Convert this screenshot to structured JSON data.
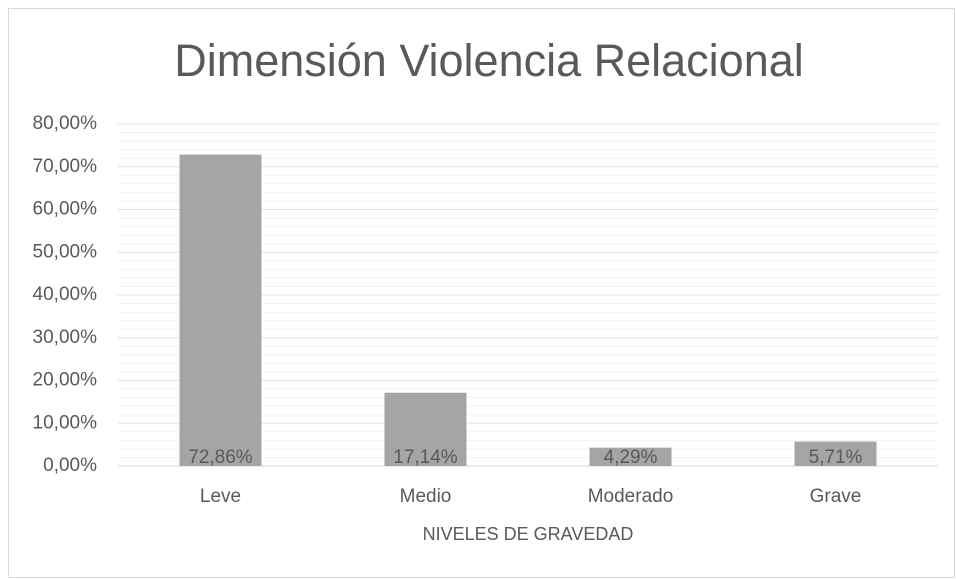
{
  "chart_data": {
    "type": "bar",
    "title": "Dimensión Violencia Relacional",
    "x_label": "NIVELES DE GRAVEDAD",
    "categories": [
      "Leve",
      "Medio",
      "Moderado",
      "Grave"
    ],
    "values": [
      72.86,
      17.14,
      4.29,
      5.71
    ],
    "value_labels": [
      "72,86%",
      "17,14%",
      "4,29%",
      "5,71%"
    ],
    "color": "#a5a5a5",
    "ylim": [
      0,
      80
    ],
    "yticks": [
      {
        "value": 0,
        "label": "0,00%"
      },
      {
        "value": 10,
        "label": "10,00%"
      },
      {
        "value": 20,
        "label": "20,00%"
      },
      {
        "value": 30,
        "label": "30,00%"
      },
      {
        "value": 40,
        "label": "40,00%"
      },
      {
        "value": 50,
        "label": "50,00%"
      },
      {
        "value": 60,
        "label": "60,00%"
      },
      {
        "value": 70,
        "label": "70,00%"
      },
      {
        "value": 80,
        "label": "80,00%"
      }
    ],
    "grid": true,
    "minor_grid": true
  }
}
